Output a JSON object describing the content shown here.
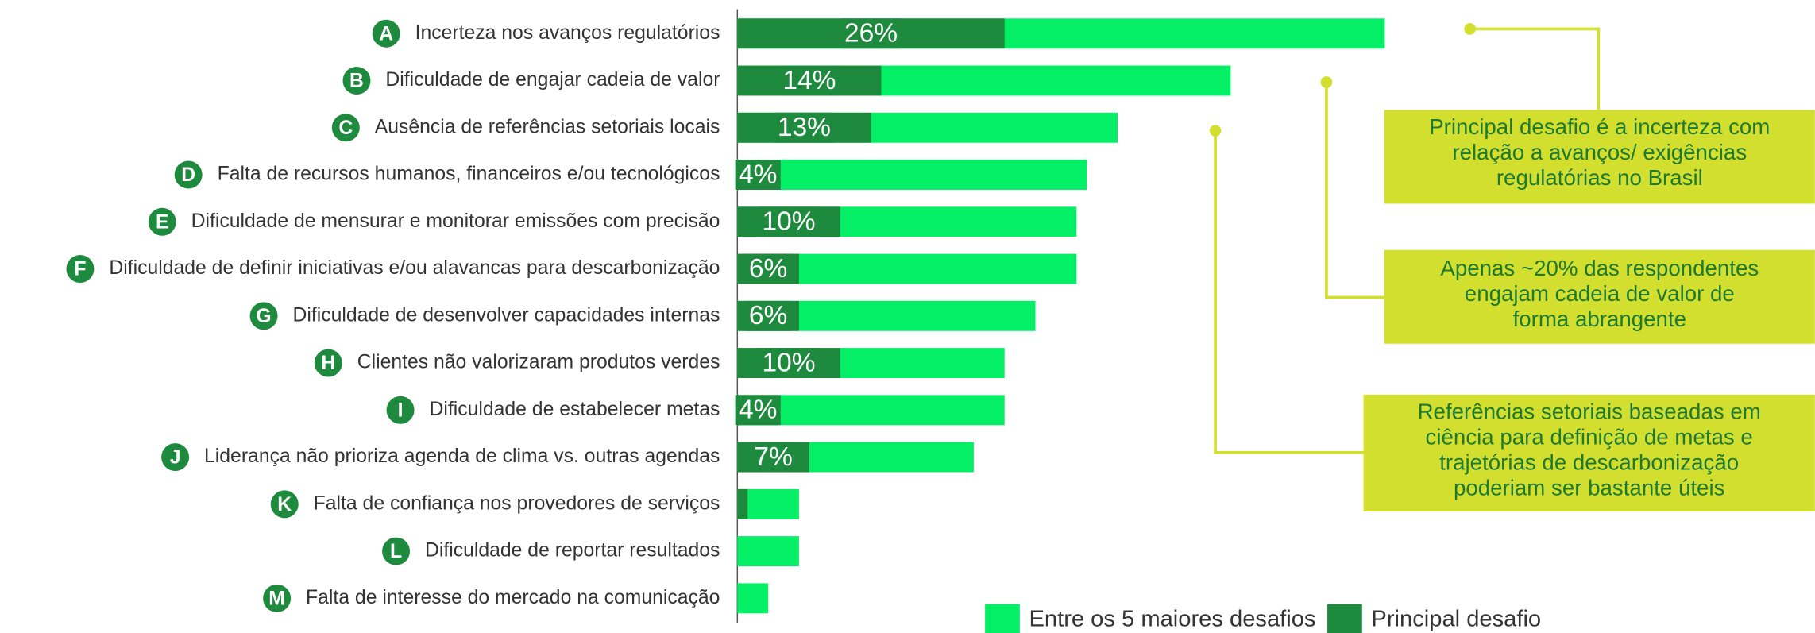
{
  "chart_data": {
    "type": "bar",
    "orientation": "horizontal",
    "categories": [
      "Incerteza nos avanços regulatórios",
      "Dificuldade de engajar cadeia de valor",
      "Ausência de referências setoriais locais",
      "Falta de recursos humanos, financeiros e/ou tecnológicos",
      "Dificuldade de mensurar e monitorar emissões com precisão",
      "Dificuldade de definir iniciativas e/ou alavancas para descarbonização",
      "Dificuldade de desenvolver capacidades internas",
      "Clientes não valorizaram produtos verdes",
      "Dificuldade de estabelecer metas",
      "Liderança não prioriza agenda de clima vs. outras agendas",
      "Falta de confiança nos provedores de serviços",
      "Dificuldade de reportar resultados",
      "Falta de interesse do mercado na comunicação"
    ],
    "badges": [
      "A",
      "B",
      "C",
      "D",
      "E",
      "F",
      "G",
      "H",
      "I",
      "J",
      "K",
      "L",
      "M"
    ],
    "series": [
      {
        "name": "Entre os 5 maiores desafios",
        "color": "#05ef66",
        "values": [
          63,
          48,
          37,
          34,
          33,
          33,
          29,
          26,
          26,
          23,
          6,
          6,
          3
        ]
      },
      {
        "name": "Principal desafio",
        "color": "#1e8a3e",
        "values": [
          26,
          14,
          13,
          4,
          10,
          6,
          6,
          10,
          4,
          7,
          1,
          null,
          null
        ],
        "value_labels": [
          "26%",
          "14%",
          "13%",
          "4%",
          "10%",
          "6%",
          "6%",
          "10%",
          "4%",
          "7%",
          null,
          null,
          null
        ]
      }
    ],
    "xlim": [
      0,
      100
    ],
    "legend": "bottom-right",
    "annotations": [
      [
        "Principal desafio é a incerteza com",
        "relação a avanços/ exigências",
        "regulatórias no Brasil"
      ],
      [
        "Apenas ~20% das respondentes",
        "engajam cadeia de valor de",
        "forma abrangente"
      ],
      [
        "Referências setoriais baseadas em",
        "ciência para definição de metas e",
        "trajetórias de descarbonização",
        "poderiam ser bastante úteis"
      ]
    ]
  }
}
